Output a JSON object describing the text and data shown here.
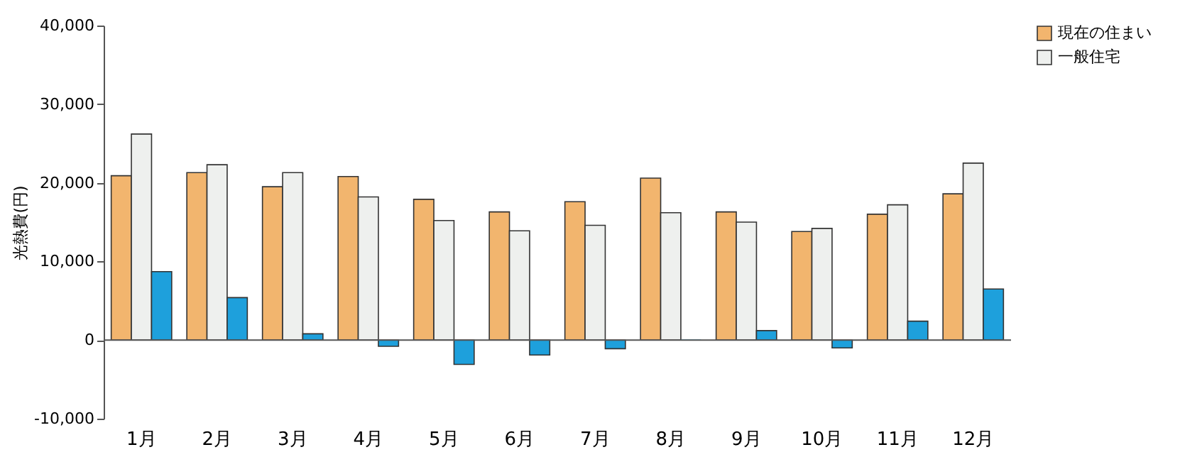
{
  "chart_data": {
    "type": "bar",
    "ylabel": "光熱費(円)",
    "categories": [
      "1月",
      "2月",
      "3月",
      "4月",
      "5月",
      "6月",
      "7月",
      "8月",
      "9月",
      "10月",
      "11月",
      "12月"
    ],
    "series": [
      {
        "name": "現在の住まい",
        "color": "#f2b56e",
        "values": [
          20900,
          21300,
          19500,
          20800,
          17900,
          16300,
          17600,
          20600,
          16300,
          13800,
          16000,
          18600
        ]
      },
      {
        "name": "一般住宅",
        "color": "#eef0ee",
        "values": [
          26200,
          22300,
          21300,
          18200,
          15200,
          13900,
          14600,
          16200,
          15000,
          14200,
          17200,
          22500
        ]
      },
      {
        "color": "#1ea0dc",
        "values": [
          8700,
          5400,
          800,
          -800,
          -3100,
          -1900,
          -1100,
          0,
          1200,
          -1000,
          2400,
          6500
        ]
      }
    ],
    "ylim": [
      -10000,
      40000
    ],
    "yticks": [
      {
        "value": -10000,
        "label": "-10,000"
      },
      0,
      {
        "value": 10000,
        "label": "10,000"
      },
      {
        "value": 20000,
        "label": "20,000"
      },
      {
        "value": 30000,
        "label": "30,000"
      },
      {
        "value": 40000,
        "label": "40,000"
      }
    ],
    "legend": "top right"
  }
}
